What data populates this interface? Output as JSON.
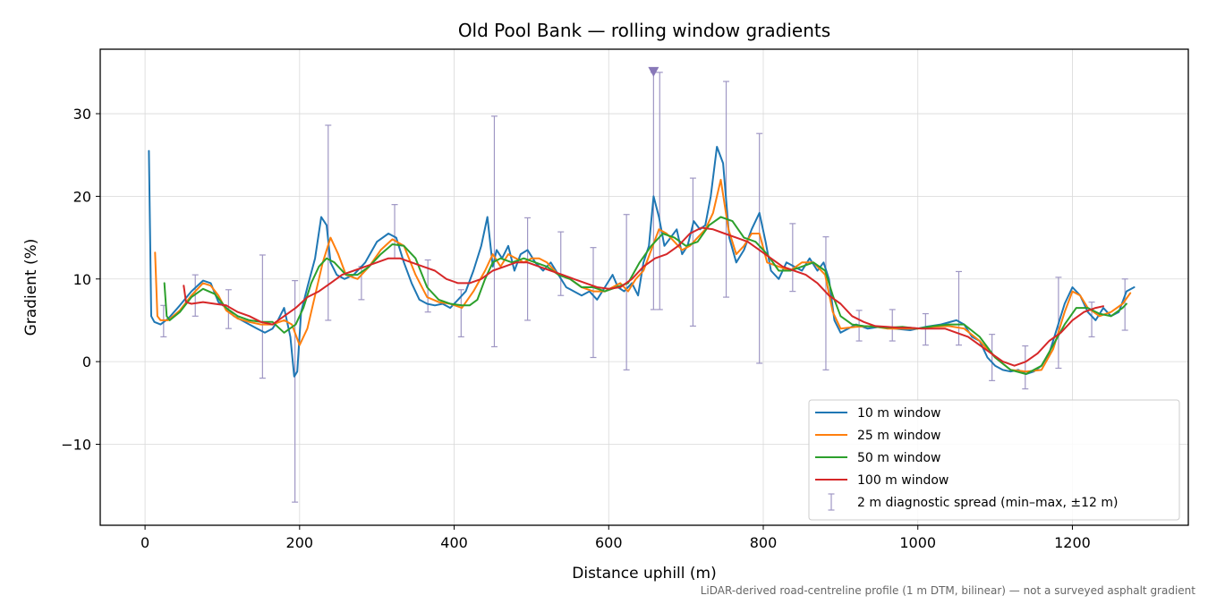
{
  "chart_data": {
    "type": "line",
    "title": "Old Pool Bank — rolling window gradients",
    "xlabel": "Distance uphill (m)",
    "ylabel": "Gradient (%)",
    "footnote": "LiDAR-derived road-centreline profile (1 m DTM, bilinear) — not a surveyed asphalt gradient",
    "xlim": [
      -58,
      1350
    ],
    "ylim": [
      -19.8,
      37.8
    ],
    "x_ticks": [
      0,
      200,
      400,
      600,
      800,
      1000,
      1200
    ],
    "y_ticks": [
      -10,
      0,
      10,
      20,
      30
    ],
    "y_tick_labels": [
      "−10",
      "0",
      "10",
      "20",
      "30"
    ],
    "grid": true,
    "legend_position": "lower-right",
    "series": [
      {
        "name": "10 m window",
        "color": "#1f77b4",
        "x": [
          5,
          8,
          12,
          20,
          30,
          45,
          60,
          75,
          85,
          95,
          105,
          115,
          125,
          135,
          145,
          155,
          165,
          172,
          180,
          188,
          193,
          197,
          202,
          210,
          220,
          228,
          235,
          240,
          248,
          258,
          270,
          285,
          300,
          315,
          325,
          335,
          345,
          355,
          365,
          375,
          385,
          395,
          405,
          415,
          425,
          435,
          443,
          450,
          455,
          462,
          470,
          478,
          486,
          495,
          505,
          515,
          525,
          535,
          545,
          555,
          565,
          575,
          585,
          595,
          605,
          612,
          620,
          630,
          638,
          645,
          652,
          658,
          665,
          672,
          680,
          688,
          695,
          702,
          710,
          718,
          725,
          732,
          740,
          748,
          756,
          765,
          775,
          785,
          795,
          803,
          810,
          820,
          830,
          840,
          850,
          860,
          870,
          878,
          885,
          892,
          900,
          910,
          920,
          935,
          950,
          970,
          990,
          1010,
          1030,
          1050,
          1060,
          1070,
          1080,
          1090,
          1100,
          1110,
          1120,
          1130,
          1140,
          1150,
          1160,
          1170,
          1180,
          1190,
          1200,
          1210,
          1220,
          1230,
          1240,
          1250,
          1260,
          1270,
          1280
        ],
        "values": [
          25.5,
          5.5,
          4.8,
          4.5,
          5.2,
          6.8,
          8.5,
          9.8,
          9.5,
          7.2,
          6.5,
          5.5,
          5.0,
          4.5,
          4.0,
          3.5,
          4.0,
          5.0,
          6.5,
          3.0,
          -1.8,
          -1.2,
          6.0,
          9.0,
          12.5,
          17.5,
          16.5,
          12.0,
          10.5,
          10.0,
          10.5,
          12.0,
          14.5,
          15.5,
          15.0,
          12.0,
          9.5,
          7.5,
          7.0,
          6.8,
          7.0,
          6.5,
          7.5,
          8.5,
          11.0,
          14.0,
          17.5,
          11.5,
          13.5,
          12.5,
          14.0,
          11.0,
          13.0,
          13.5,
          12.0,
          11.0,
          12.0,
          10.5,
          9.0,
          8.5,
          8.0,
          8.5,
          7.5,
          9.0,
          10.5,
          9.0,
          8.5,
          9.5,
          8.0,
          12.0,
          14.0,
          20.0,
          17.5,
          14.0,
          15.0,
          16.0,
          13.0,
          14.0,
          17.0,
          16.0,
          16.5,
          20.0,
          26.0,
          24.0,
          15.0,
          12.0,
          13.5,
          16.0,
          18.0,
          14.5,
          11.0,
          10.0,
          12.0,
          11.5,
          11.0,
          12.5,
          11.0,
          12.0,
          10.0,
          5.0,
          3.5,
          4.0,
          4.5,
          4.0,
          4.2,
          4.0,
          3.8,
          4.2,
          4.5,
          5.0,
          4.5,
          3.0,
          2.5,
          0.5,
          -0.5,
          -1.0,
          -1.2,
          -1.0,
          -1.5,
          -1.2,
          -0.5,
          1.0,
          4.0,
          7.0,
          9.0,
          8.0,
          6.0,
          5.0,
          6.5,
          5.5,
          6.0,
          8.5,
          9.0
        ]
      },
      {
        "name": "25 m window",
        "color": "#ff7f0e",
        "x": [
          13,
          16,
          20,
          30,
          45,
          60,
          75,
          85,
          95,
          105,
          120,
          135,
          150,
          165,
          180,
          190,
          200,
          210,
          220,
          230,
          240,
          250,
          260,
          275,
          290,
          305,
          320,
          335,
          350,
          365,
          380,
          395,
          410,
          425,
          440,
          450,
          460,
          470,
          480,
          490,
          500,
          510,
          520,
          535,
          550,
          565,
          580,
          595,
          605,
          615,
          625,
          635,
          645,
          655,
          665,
          675,
          685,
          695,
          705,
          715,
          725,
          735,
          745,
          755,
          765,
          775,
          785,
          795,
          805,
          820,
          835,
          850,
          865,
          880,
          890,
          900,
          920,
          940,
          960,
          980,
          1000,
          1020,
          1040,
          1060,
          1080,
          1100,
          1120,
          1140,
          1160,
          1175,
          1190,
          1200,
          1210,
          1220,
          1235,
          1250,
          1265,
          1275
        ],
        "values": [
          13.2,
          5.5,
          5.0,
          5.0,
          6.2,
          8.0,
          9.5,
          9.2,
          8.0,
          6.2,
          5.2,
          4.8,
          4.5,
          4.5,
          5.0,
          4.5,
          2.0,
          4.0,
          8.0,
          12.0,
          15.0,
          13.0,
          10.5,
          10.0,
          11.5,
          13.5,
          14.8,
          14.0,
          10.5,
          7.8,
          7.2,
          7.0,
          6.5,
          8.5,
          11.0,
          13.0,
          11.5,
          13.0,
          12.5,
          12.0,
          12.5,
          12.5,
          12.0,
          10.5,
          10.0,
          9.0,
          8.5,
          8.5,
          9.0,
          9.5,
          8.5,
          10.0,
          11.0,
          13.5,
          16.0,
          15.5,
          14.5,
          13.5,
          14.0,
          15.0,
          16.0,
          18.0,
          22.0,
          16.0,
          13.0,
          14.0,
          15.5,
          15.5,
          12.0,
          11.5,
          11.0,
          12.0,
          12.0,
          10.5,
          6.0,
          4.0,
          4.2,
          4.3,
          4.0,
          4.0,
          4.0,
          4.2,
          4.3,
          4.0,
          2.5,
          0.5,
          -1.0,
          -1.2,
          -1.0,
          1.5,
          6.0,
          8.5,
          8.0,
          6.5,
          5.5,
          6.0,
          7.0,
          8.3
        ]
      },
      {
        "name": "50 m window",
        "color": "#2ca02c",
        "x": [
          25,
          28,
          32,
          45,
          60,
          75,
          90,
          105,
          120,
          135,
          150,
          165,
          180,
          195,
          205,
          215,
          225,
          235,
          245,
          260,
          275,
          290,
          305,
          320,
          335,
          350,
          365,
          380,
          395,
          410,
          420,
          430,
          440,
          450,
          460,
          475,
          490,
          505,
          520,
          535,
          550,
          565,
          580,
          595,
          610,
          625,
          640,
          655,
          670,
          685,
          700,
          715,
          730,
          745,
          760,
          775,
          790,
          805,
          820,
          835,
          850,
          865,
          880,
          890,
          900,
          915,
          930,
          945,
          960,
          980,
          1000,
          1020,
          1040,
          1060,
          1080,
          1100,
          1120,
          1140,
          1160,
          1175,
          1190,
          1205,
          1220,
          1235,
          1250,
          1265,
          1270
        ],
        "values": [
          9.5,
          5.5,
          5.0,
          6.0,
          7.8,
          8.8,
          8.2,
          6.5,
          5.5,
          5.0,
          4.8,
          4.8,
          3.5,
          4.5,
          6.5,
          9.5,
          11.5,
          12.5,
          12.0,
          10.5,
          10.5,
          11.5,
          13.0,
          14.2,
          14.0,
          12.5,
          9.0,
          7.5,
          7.0,
          6.8,
          6.8,
          7.5,
          10.0,
          12.0,
          12.5,
          12.0,
          12.5,
          12.0,
          11.5,
          10.5,
          10.0,
          9.0,
          9.0,
          8.5,
          9.0,
          9.5,
          12.0,
          14.0,
          15.5,
          15.0,
          14.0,
          14.5,
          16.5,
          17.5,
          17.0,
          15.0,
          14.5,
          13.0,
          11.0,
          11.0,
          11.5,
          12.0,
          11.0,
          8.0,
          5.5,
          4.5,
          4.3,
          4.2,
          4.1,
          4.2,
          4.0,
          4.3,
          4.5,
          4.5,
          3.0,
          0.5,
          -1.0,
          -1.5,
          -0.5,
          2.0,
          4.5,
          6.5,
          6.5,
          5.8,
          5.5,
          6.5,
          7.0
        ]
      },
      {
        "name": "100 m window",
        "color": "#d62728",
        "x": [
          50,
          53,
          60,
          75,
          90,
          105,
          120,
          135,
          150,
          165,
          180,
          195,
          210,
          225,
          240,
          255,
          270,
          285,
          300,
          315,
          330,
          345,
          360,
          375,
          390,
          405,
          420,
          435,
          450,
          465,
          480,
          495,
          510,
          525,
          540,
          555,
          570,
          585,
          600,
          615,
          630,
          645,
          660,
          675,
          690,
          705,
          720,
          735,
          750,
          765,
          780,
          795,
          810,
          825,
          840,
          855,
          870,
          885,
          900,
          915,
          930,
          945,
          960,
          975,
          990,
          1005,
          1020,
          1035,
          1050,
          1065,
          1080,
          1095,
          1110,
          1125,
          1140,
          1155,
          1170,
          1185,
          1200,
          1215,
          1230,
          1240
        ],
        "values": [
          9.2,
          7.2,
          7.0,
          7.2,
          7.0,
          6.8,
          6.0,
          5.5,
          4.8,
          4.5,
          5.5,
          6.5,
          7.8,
          8.5,
          9.5,
          10.5,
          11.0,
          11.5,
          12.0,
          12.5,
          12.5,
          12.0,
          11.5,
          11.0,
          10.0,
          9.5,
          9.5,
          10.0,
          11.0,
          11.5,
          12.0,
          12.0,
          11.5,
          11.0,
          10.5,
          10.0,
          9.5,
          9.0,
          8.8,
          9.0,
          10.0,
          11.5,
          12.5,
          13.0,
          14.0,
          15.5,
          16.2,
          16.0,
          15.5,
          15.0,
          14.5,
          13.5,
          12.5,
          11.5,
          11.0,
          10.5,
          9.5,
          8.0,
          7.0,
          5.5,
          4.8,
          4.3,
          4.2,
          4.1,
          4.1,
          4.0,
          4.0,
          4.0,
          3.5,
          3.0,
          2.0,
          1.0,
          0.0,
          -0.5,
          0.0,
          1.0,
          2.5,
          3.5,
          5.0,
          6.0,
          6.5,
          6.7
        ]
      }
    ],
    "error_bars": {
      "name": "2 m diagnostic spread (min–max, ±12 m)",
      "color": "#9f97c4",
      "x": [
        24,
        65,
        108,
        152,
        194,
        237,
        280,
        323,
        366,
        409,
        452,
        495,
        538,
        580,
        623,
        658,
        666,
        709,
        752,
        795,
        838,
        881,
        924,
        967,
        1010,
        1053,
        1096,
        1139,
        1182,
        1225,
        1268
      ],
      "low": [
        3.0,
        5.5,
        4.0,
        -2.0,
        -17.0,
        5.0,
        7.5,
        12.5,
        6.0,
        3.0,
        1.8,
        5.0,
        8.0,
        0.5,
        -1.0,
        6.3,
        6.3,
        4.3,
        7.8,
        -0.2,
        8.5,
        -1.0,
        2.5,
        2.5,
        2.0,
        2.0,
        -2.3,
        -3.3,
        -0.8,
        3.0,
        3.8
      ],
      "high": [
        6.8,
        10.5,
        8.7,
        12.9,
        9.8,
        28.6,
        11.5,
        19.0,
        12.3,
        8.7,
        29.7,
        17.4,
        15.7,
        13.8,
        17.8,
        35.0,
        35.0,
        22.2,
        33.9,
        27.6,
        16.7,
        15.1,
        6.2,
        6.3,
        5.8,
        10.9,
        3.3,
        1.9,
        10.2,
        7.2,
        10.0
      ],
      "clipped_marker_x": 658
    }
  }
}
